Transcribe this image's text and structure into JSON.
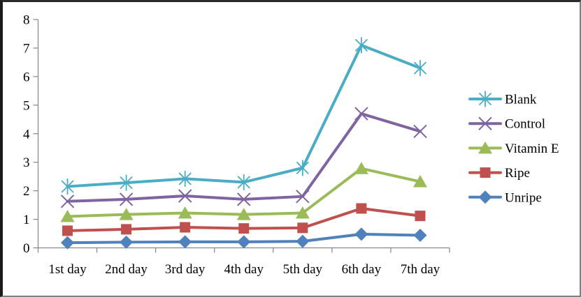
{
  "chart_data": {
    "type": "line",
    "title": "",
    "xlabel": "",
    "ylabel": "",
    "categories": [
      "1st day",
      "2nd day",
      "3rd day",
      "4th day",
      "5th day",
      "6th day",
      "7th day"
    ],
    "series": [
      {
        "name": "Blank",
        "color": "#4BACC6",
        "marker": "asterisk",
        "values": [
          2.15,
          2.28,
          2.42,
          2.3,
          2.8,
          7.1,
          6.3
        ]
      },
      {
        "name": "Control",
        "color": "#8064A2",
        "marker": "x",
        "values": [
          1.63,
          1.7,
          1.82,
          1.7,
          1.8,
          4.7,
          4.08
        ]
      },
      {
        "name": "Vitamin E",
        "color": "#9BBB59",
        "marker": "triangle",
        "values": [
          1.1,
          1.17,
          1.22,
          1.17,
          1.22,
          2.78,
          2.32
        ]
      },
      {
        "name": "Ripe",
        "color": "#C0504D",
        "marker": "square",
        "values": [
          0.6,
          0.65,
          0.72,
          0.68,
          0.7,
          1.38,
          1.12
        ]
      },
      {
        "name": "Unripe",
        "color": "#4F81BD",
        "marker": "diamond",
        "values": [
          0.18,
          0.2,
          0.21,
          0.21,
          0.23,
          0.48,
          0.44
        ]
      }
    ],
    "ylim": [
      0,
      8
    ],
    "ytick_step": 1,
    "ytick_labels": [
      "0",
      "1",
      "2",
      "3",
      "4",
      "5",
      "6",
      "7",
      "8"
    ],
    "grid": false,
    "legend_position": "right",
    "legend_labels": [
      "Blank",
      "Control",
      "Vitamin E",
      "Ripe",
      "Unripe"
    ],
    "axis_color": "#868686",
    "text_color": "#000000",
    "background_color": "#ffffff"
  }
}
